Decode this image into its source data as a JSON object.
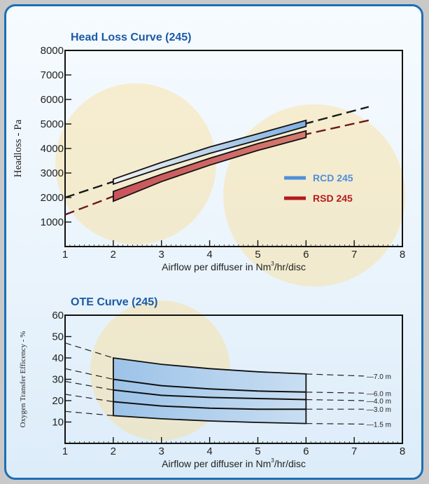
{
  "chart_data": [
    {
      "type": "area",
      "title": "Head Loss Curve (245)",
      "xlabel_prefix": "Airflow per diffuser in Nm",
      "xlabel_sup": "3",
      "xlabel_suffix": "/hr/disc",
      "ylabel": "Headloss - Pa",
      "xlim": [
        1,
        8
      ],
      "ylim": [
        0,
        8000
      ],
      "x_ticks": [
        1,
        2,
        3,
        4,
        5,
        6,
        7,
        8
      ],
      "y_ticks": [
        1000,
        2000,
        3000,
        4000,
        5000,
        6000,
        7000,
        8000
      ],
      "grid": false,
      "legend": "right",
      "colors": {
        "RCD 245": "#4f8fd9",
        "RSD 245": "#b51a1a"
      },
      "series": [
        {
          "name": "RCD 245",
          "band_x": [
            2,
            6
          ],
          "upper": [
            [
              2,
              2750
            ],
            [
              3,
              3430
            ],
            [
              4,
              4060
            ],
            [
              5,
              4600
            ],
            [
              6,
              5150
            ]
          ],
          "lower": [
            [
              2,
              2550
            ],
            [
              3,
              3200
            ],
            [
              4,
              3800
            ],
            [
              5,
              4340
            ],
            [
              6,
              4900
            ]
          ],
          "dashed": [
            [
              1,
              2000
            ],
            [
              2,
              2650
            ],
            [
              3,
              3320
            ],
            [
              4,
              3930
            ],
            [
              5,
              4470
            ],
            [
              6,
              5020
            ],
            [
              7.3,
              5700
            ]
          ]
        },
        {
          "name": "RSD 245",
          "band_x": [
            2,
            6
          ],
          "upper": [
            [
              2,
              2250
            ],
            [
              3,
              2950
            ],
            [
              4,
              3600
            ],
            [
              5,
              4200
            ],
            [
              6,
              4720
            ]
          ],
          "lower": [
            [
              2,
              1850
            ],
            [
              3,
              2650
            ],
            [
              4,
              3320
            ],
            [
              5,
              3920
            ],
            [
              6,
              4450
            ]
          ],
          "dashed": [
            [
              1,
              1300
            ],
            [
              2,
              2050
            ],
            [
              3,
              2800
            ],
            [
              4,
              3460
            ],
            [
              5,
              4060
            ],
            [
              6,
              4580
            ],
            [
              7.3,
              5150
            ]
          ]
        }
      ]
    },
    {
      "type": "line",
      "title": "OTE Curve (245)",
      "xlabel_prefix": "Airflow per diffuser in Nm",
      "xlabel_sup": "3",
      "xlabel_suffix": "/hr/disc",
      "ylabel": "Oxygen Transfer Efficency - %",
      "xlim": [
        1,
        8
      ],
      "ylim": [
        0,
        60
      ],
      "x_ticks": [
        1,
        2,
        3,
        4,
        5,
        6,
        7,
        8
      ],
      "y_ticks": [
        10,
        20,
        30,
        40,
        50,
        60
      ],
      "grid": false,
      "band_x": [
        2,
        6
      ],
      "band_upper": [
        [
          2,
          40
        ],
        [
          3,
          37
        ],
        [
          4,
          35
        ],
        [
          5,
          33.5
        ],
        [
          6,
          32.5
        ]
      ],
      "band_lower": [
        [
          2,
          13
        ],
        [
          3,
          11.5
        ],
        [
          4,
          10.5
        ],
        [
          5,
          9.8
        ],
        [
          6,
          9.3
        ]
      ],
      "series": [
        {
          "name": "7.0 m",
          "x": [
            1,
            2,
            3,
            4,
            5,
            6,
            7.2
          ],
          "y": [
            47,
            40,
            37,
            35,
            33.5,
            32.5,
            31.5
          ]
        },
        {
          "name": "6.0 m",
          "x": [
            1,
            2,
            3,
            4,
            5,
            6,
            7.2
          ],
          "y": [
            35,
            30,
            27,
            25.5,
            24.5,
            24,
            23.5
          ]
        },
        {
          "name": "4.0 m",
          "x": [
            1,
            2,
            3,
            4,
            5,
            6,
            7.2
          ],
          "y": [
            29,
            25,
            22.5,
            21.5,
            21,
            20.5,
            20
          ]
        },
        {
          "name": "3.0 m",
          "x": [
            1,
            2,
            3,
            4,
            5,
            6,
            7.2
          ],
          "y": [
            23,
            19.5,
            17.5,
            16.5,
            16,
            16,
            16
          ]
        },
        {
          "name": "1.5 m",
          "x": [
            1,
            2,
            3,
            4,
            5,
            6,
            7.2
          ],
          "y": [
            15,
            13,
            11.5,
            10.5,
            9.8,
            9.3,
            9
          ]
        }
      ]
    }
  ]
}
